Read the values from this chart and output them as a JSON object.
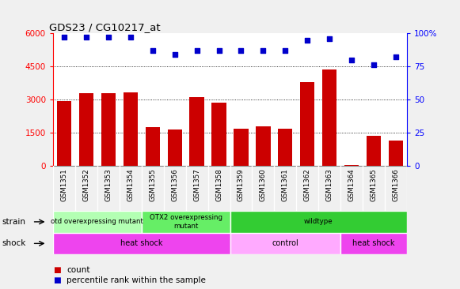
{
  "title": "GDS23 / CG10217_at",
  "samples": [
    "GSM1351",
    "GSM1352",
    "GSM1353",
    "GSM1354",
    "GSM1355",
    "GSM1356",
    "GSM1357",
    "GSM1358",
    "GSM1359",
    "GSM1360",
    "GSM1361",
    "GSM1362",
    "GSM1363",
    "GSM1364",
    "GSM1365",
    "GSM1366"
  ],
  "counts": [
    2950,
    3300,
    3280,
    3320,
    1750,
    1650,
    3100,
    2850,
    1700,
    1800,
    1700,
    3800,
    4380,
    50,
    1380,
    1150
  ],
  "percentiles": [
    97,
    97,
    97,
    97,
    87,
    84,
    87,
    87,
    87,
    87,
    87,
    95,
    96,
    80,
    76,
    82
  ],
  "bar_color": "#cc0000",
  "dot_color": "#0000cc",
  "ylim_left": [
    0,
    6000
  ],
  "ylim_right": [
    0,
    100
  ],
  "yticks_left": [
    0,
    1500,
    3000,
    4500,
    6000
  ],
  "yticks_right": [
    0,
    25,
    50,
    75,
    100
  ],
  "ylabel_right_labels": [
    "0",
    "25",
    "50",
    "75",
    "100%"
  ],
  "grid_values": [
    1500,
    3000,
    4500
  ],
  "strain_groups": [
    {
      "label": "otd overexpressing mutant",
      "start": 0,
      "end": 4,
      "color": "#b3ffb3"
    },
    {
      "label": "OTX2 overexpressing\nmutant",
      "start": 4,
      "end": 8,
      "color": "#66ee66"
    },
    {
      "label": "wildtype",
      "start": 8,
      "end": 16,
      "color": "#33cc33"
    }
  ],
  "shock_groups": [
    {
      "label": "heat shock",
      "start": 0,
      "end": 8,
      "color": "#ee44ee"
    },
    {
      "label": "control",
      "start": 8,
      "end": 13,
      "color": "#ffaaff"
    },
    {
      "label": "heat shock",
      "start": 13,
      "end": 16,
      "color": "#ee44ee"
    }
  ],
  "legend_items": [
    {
      "color": "#cc0000",
      "label": "count"
    },
    {
      "color": "#0000cc",
      "label": "percentile rank within the sample"
    }
  ],
  "tick_label_bg": "#d0d0d0",
  "fig_bg_color": "#f0f0f0"
}
